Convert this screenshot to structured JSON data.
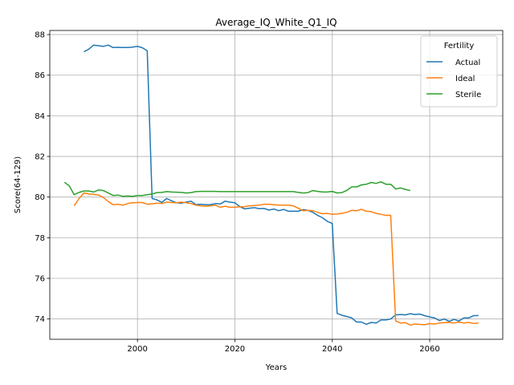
{
  "chart_data": {
    "type": "line",
    "title": "Average_IQ_White_Q1_IQ",
    "xlabel": "Years",
    "ylabel": "Score(64-129)",
    "xlim": [
      1982,
      2075
    ],
    "ylim": [
      73.0,
      88.2
    ],
    "xticks": [
      2000,
      2020,
      2040,
      2060
    ],
    "yticks": [
      74,
      76,
      78,
      80,
      82,
      84,
      86,
      88
    ],
    "grid": true,
    "legend": {
      "title": "Fertility",
      "placement": "top-right"
    },
    "series": [
      {
        "name": "Actual",
        "color": "#1f77b4",
        "x": [
          1989,
          1990,
          1991,
          1992,
          1993,
          1994,
          1995,
          1996,
          1997,
          1998,
          1999,
          2000,
          2001,
          2002,
          2003,
          2004,
          2005,
          2006,
          2007,
          2008,
          2009,
          2010,
          2011,
          2012,
          2013,
          2014,
          2015,
          2016,
          2017,
          2018,
          2019,
          2020,
          2021,
          2022,
          2023,
          2024,
          2025,
          2026,
          2027,
          2028,
          2029,
          2030,
          2031,
          2032,
          2033,
          2034,
          2035,
          2036,
          2037,
          2038,
          2039,
          2040,
          2041,
          2042,
          2043,
          2044,
          2045,
          2046,
          2047,
          2048,
          2049,
          2050,
          2051,
          2052,
          2053,
          2054,
          2055,
          2056,
          2057,
          2058,
          2059,
          2060,
          2061,
          2062,
          2063,
          2064,
          2065,
          2066,
          2067,
          2068,
          2069,
          2070
        ],
        "values": [
          87.15,
          87.28,
          87.48,
          87.45,
          87.42,
          87.48,
          87.36,
          87.37,
          87.36,
          87.36,
          87.38,
          87.42,
          87.35,
          87.2,
          79.93,
          79.86,
          79.74,
          79.93,
          79.82,
          79.72,
          79.7,
          79.75,
          79.8,
          79.63,
          79.65,
          79.62,
          79.63,
          79.68,
          79.66,
          79.8,
          79.75,
          79.72,
          79.53,
          79.42,
          79.45,
          79.48,
          79.43,
          79.44,
          79.36,
          79.41,
          79.33,
          79.39,
          79.3,
          79.31,
          79.3,
          79.38,
          79.35,
          79.25,
          79.1,
          78.98,
          78.8,
          78.7,
          74.27,
          74.18,
          74.12,
          74.05,
          73.85,
          73.85,
          73.74,
          73.83,
          73.8,
          73.95,
          73.95,
          74.0,
          74.2,
          74.22,
          74.2,
          74.26,
          74.22,
          74.24,
          74.16,
          74.1,
          74.05,
          73.92,
          74.0,
          73.88,
          73.98,
          73.9,
          74.05,
          74.05,
          74.16,
          74.17
        ]
      },
      {
        "name": "Ideal",
        "color": "#ff7f0e",
        "x": [
          1987,
          1988,
          1989,
          1990,
          1991,
          1992,
          1993,
          1994,
          1995,
          1996,
          1997,
          1998,
          1999,
          2000,
          2001,
          2002,
          2003,
          2004,
          2005,
          2006,
          2007,
          2008,
          2009,
          2010,
          2011,
          2012,
          2013,
          2014,
          2015,
          2016,
          2017,
          2018,
          2019,
          2020,
          2021,
          2022,
          2023,
          2024,
          2025,
          2026,
          2027,
          2028,
          2029,
          2030,
          2031,
          2032,
          2033,
          2034,
          2035,
          2036,
          2037,
          2038,
          2039,
          2040,
          2041,
          2042,
          2043,
          2044,
          2045,
          2046,
          2047,
          2048,
          2049,
          2050,
          2051,
          2052,
          2053,
          2054,
          2055,
          2056,
          2057,
          2058,
          2059,
          2060,
          2061,
          2062,
          2063,
          2064,
          2065,
          2066,
          2067,
          2068,
          2069,
          2070
        ],
        "values": [
          79.57,
          79.93,
          80.2,
          80.15,
          80.13,
          80.1,
          79.98,
          79.78,
          79.62,
          79.65,
          79.6,
          79.68,
          79.72,
          79.73,
          79.73,
          79.65,
          79.67,
          79.7,
          79.68,
          79.75,
          79.73,
          79.72,
          79.75,
          79.72,
          79.68,
          79.6,
          79.57,
          79.55,
          79.57,
          79.6,
          79.5,
          79.55,
          79.5,
          79.5,
          79.52,
          79.53,
          79.57,
          79.58,
          79.6,
          79.65,
          79.65,
          79.62,
          79.6,
          79.6,
          79.6,
          79.57,
          79.45,
          79.33,
          79.35,
          79.33,
          79.25,
          79.18,
          79.2,
          79.15,
          79.17,
          79.2,
          79.25,
          79.35,
          79.33,
          79.4,
          79.3,
          79.28,
          79.2,
          79.15,
          79.1,
          79.1,
          73.9,
          73.8,
          73.82,
          73.7,
          73.75,
          73.73,
          73.72,
          73.77,
          73.75,
          73.8,
          73.82,
          73.83,
          73.8,
          73.85,
          73.8,
          73.83,
          73.78,
          73.8
        ]
      },
      {
        "name": "Sterile",
        "color": "#2ca02c",
        "x": [
          1985,
          1986,
          1987,
          1988,
          1989,
          1990,
          1991,
          1992,
          1993,
          1994,
          1995,
          1996,
          1997,
          1998,
          1999,
          2000,
          2001,
          2002,
          2003,
          2004,
          2005,
          2006,
          2007,
          2008,
          2009,
          2010,
          2011,
          2012,
          2013,
          2014,
          2015,
          2016,
          2017,
          2018,
          2019,
          2020,
          2021,
          2022,
          2023,
          2024,
          2025,
          2026,
          2027,
          2028,
          2029,
          2030,
          2031,
          2032,
          2033,
          2034,
          2035,
          2036,
          2037,
          2038,
          2039,
          2040,
          2041,
          2042,
          2043,
          2044,
          2045,
          2046,
          2047,
          2048,
          2049,
          2050,
          2051,
          2052,
          2053,
          2054,
          2055,
          2056
        ],
        "values": [
          80.73,
          80.55,
          80.12,
          80.23,
          80.3,
          80.3,
          80.25,
          80.35,
          80.32,
          80.2,
          80.08,
          80.1,
          80.04,
          80.05,
          80.04,
          80.08,
          80.08,
          80.12,
          80.15,
          80.22,
          80.23,
          80.27,
          80.25,
          80.24,
          80.23,
          80.2,
          80.22,
          80.27,
          80.28,
          80.28,
          80.28,
          80.28,
          80.27,
          80.27,
          80.27,
          80.27,
          80.27,
          80.27,
          80.27,
          80.27,
          80.27,
          80.27,
          80.27,
          80.27,
          80.27,
          80.27,
          80.27,
          80.27,
          80.23,
          80.2,
          80.22,
          80.32,
          80.28,
          80.25,
          80.25,
          80.28,
          80.2,
          80.22,
          80.33,
          80.5,
          80.5,
          80.6,
          80.63,
          80.72,
          80.67,
          80.75,
          80.63,
          80.63,
          80.4,
          80.45,
          80.38,
          80.32
        ]
      }
    ]
  }
}
